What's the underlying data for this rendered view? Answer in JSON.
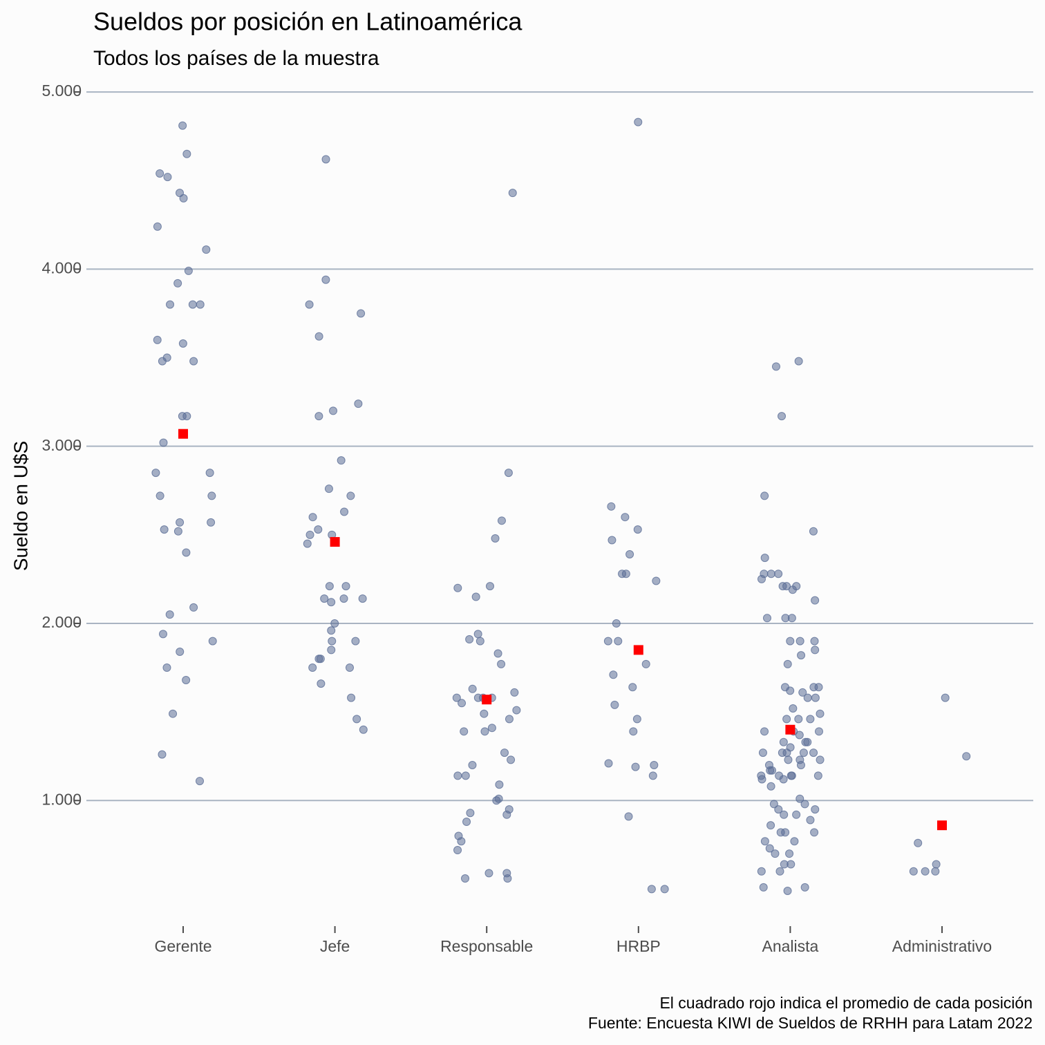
{
  "chart_data": {
    "type": "strip",
    "title": "Sueldos por posición en Latinoamérica",
    "subtitle": "Todos los países de la muestra",
    "y_label": "Sueldo en U$S",
    "caption": [
      "El cuadrado rojo indica el promedio de cada posición",
      "Fuente: Encuesta KIWI de Sueldos de RRHH para Latam 2022"
    ],
    "categories": [
      "Gerente",
      "Jefe",
      "Responsable",
      "HRBP",
      "Analista",
      "Administrativo"
    ],
    "values": [
      [
        4810,
        4650,
        4540,
        4520,
        4430,
        4400,
        4240,
        4110,
        3990,
        3920,
        3800,
        3800,
        3800,
        3600,
        3580,
        3500,
        3480,
        3480,
        3170,
        3170,
        3020,
        2850,
        2850,
        2720,
        2720,
        2570,
        2570,
        2530,
        2520,
        2400,
        2090,
        2050,
        1940,
        1900,
        1840,
        1750,
        1680,
        1490,
        1260,
        1110
      ],
      [
        4620,
        3940,
        3800,
        3750,
        3620,
        3240,
        3200,
        3170,
        2920,
        2760,
        2720,
        2630,
        2600,
        2530,
        2500,
        2500,
        2450,
        2210,
        2210,
        2140,
        2140,
        2140,
        2120,
        2000,
        1960,
        1900,
        1900,
        1850,
        1800,
        1800,
        1750,
        1750,
        1660,
        1580,
        1460,
        1400
      ],
      [
        4430,
        2850,
        2580,
        2480,
        2210,
        2200,
        2150,
        1940,
        1910,
        1900,
        1830,
        1770,
        1630,
        1610,
        1580,
        1580,
        1580,
        1580,
        1550,
        1510,
        1490,
        1460,
        1410,
        1390,
        1390,
        1270,
        1230,
        1200,
        1140,
        1140,
        1090,
        1010,
        1000,
        950,
        930,
        920,
        880,
        800,
        770,
        720,
        590,
        590,
        560,
        560
      ],
      [
        4830,
        2660,
        2600,
        2530,
        2470,
        2390,
        2280,
        2280,
        2240,
        2000,
        1900,
        1900,
        1770,
        1710,
        1640,
        1540,
        1460,
        1390,
        1210,
        1200,
        1190,
        1140,
        910,
        500,
        500
      ],
      [
        3480,
        3450,
        3170,
        2720,
        2520,
        2370,
        2280,
        2280,
        2280,
        2250,
        2210,
        2210,
        2210,
        2190,
        2130,
        2030,
        2030,
        2030,
        1900,
        1900,
        1900,
        1850,
        1820,
        1770,
        1640,
        1640,
        1640,
        1620,
        1610,
        1580,
        1580,
        1520,
        1490,
        1460,
        1460,
        1460,
        1390,
        1390,
        1390,
        1370,
        1330,
        1330,
        1330,
        1300,
        1270,
        1270,
        1270,
        1270,
        1270,
        1230,
        1230,
        1230,
        1200,
        1200,
        1170,
        1170,
        1140,
        1140,
        1140,
        1140,
        1140,
        1120,
        1120,
        1080,
        1010,
        980,
        980,
        950,
        950,
        920,
        920,
        890,
        860,
        820,
        820,
        820,
        770,
        770,
        730,
        700,
        700,
        640,
        640,
        600,
        600,
        510,
        510,
        490
      ],
      [
        1580,
        1250,
        760,
        640,
        600,
        600,
        600
      ]
    ],
    "means": [
      3070,
      2460,
      1570,
      1850,
      1400,
      860
    ],
    "point_color": "#5b6e96",
    "mean_color": "#ff0000",
    "ylim": [
      330,
      5090
    ],
    "yticks": [
      {
        "value": 1000,
        "label": "1.000"
      },
      {
        "value": 2000,
        "label": "2.000"
      },
      {
        "value": 3000,
        "label": "3.000"
      },
      {
        "value": 4000,
        "label": "4.000"
      },
      {
        "value": 5000,
        "label": "5.000"
      }
    ],
    "grid": true
  }
}
